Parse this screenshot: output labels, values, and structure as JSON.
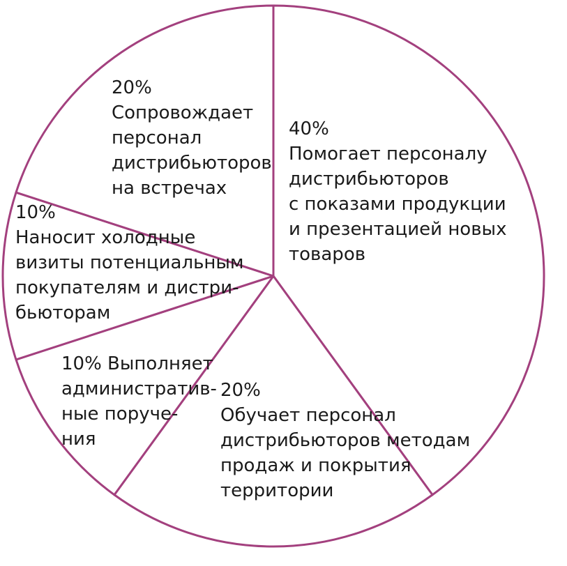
{
  "chart_data": {
    "type": "pie",
    "slice_color": "#ffffff",
    "border_color": "#a3407e",
    "start_angle_deg": 0,
    "direction": "clockwise",
    "slices": [
      {
        "value": 40,
        "label_lines": [
          "40%",
          "Помогает персоналу",
          "дистрибьюторов",
          "с показами продукции",
          "и презентацией новых",
          "товаров"
        ]
      },
      {
        "value": 20,
        "label_lines": [
          "20%",
          "Обучает персонал",
          "дистрибьюторов методам",
          "продаж и покрытия",
          "территории"
        ]
      },
      {
        "value": 10,
        "label_lines": [
          "10% Выполняет",
          "административ-",
          "ные поруче-",
          "ния"
        ]
      },
      {
        "value": 10,
        "label_lines": [
          "10%",
          "Наносит холодные",
          "визиты потенциальным",
          "покупателям и дистри-",
          "бьюторам"
        ]
      },
      {
        "value": 20,
        "label_lines": [
          "20%",
          "Сопровождает",
          "персонал",
          "дистрибьюторов",
          "на встречах"
        ]
      }
    ]
  }
}
